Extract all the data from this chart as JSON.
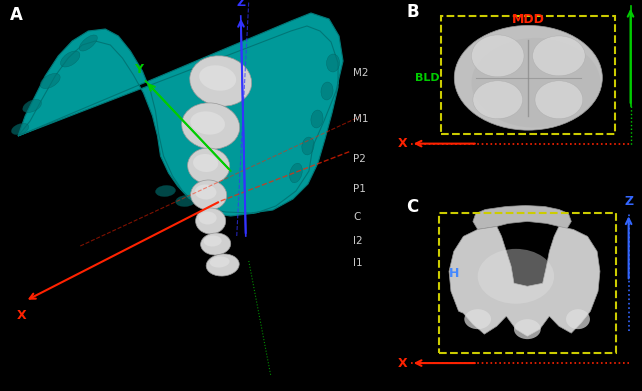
{
  "bg_color": "#000000",
  "panel_A": {
    "label": "A",
    "tooth_labels": [
      "M2",
      "M1",
      "P2",
      "P1",
      "C",
      "I2",
      "I1"
    ],
    "jaw_color": "#009999",
    "jaw_edge_color": "#007777",
    "tooth_color": "#d0d0d0",
    "tooth_edge_color": "#999999",
    "axis_colors": {
      "X": "#ff2200",
      "Y": "#00cc00",
      "Z": "#3333ff"
    }
  },
  "panel_B": {
    "label": "B",
    "MDD_label": "MDD",
    "MDD_color": "#ff2200",
    "BLD_label": "BLD",
    "BLD_color": "#00cc00",
    "box_color": "#cccc00",
    "axis_colors": {
      "X": "#ff2200",
      "Y": "#00cc00"
    }
  },
  "panel_C": {
    "label": "C",
    "H_label": "H",
    "H_color": "#4488ff",
    "box_color": "#cccc00",
    "axis_colors": {
      "X": "#ff2200",
      "Z": "#3366ff"
    }
  }
}
